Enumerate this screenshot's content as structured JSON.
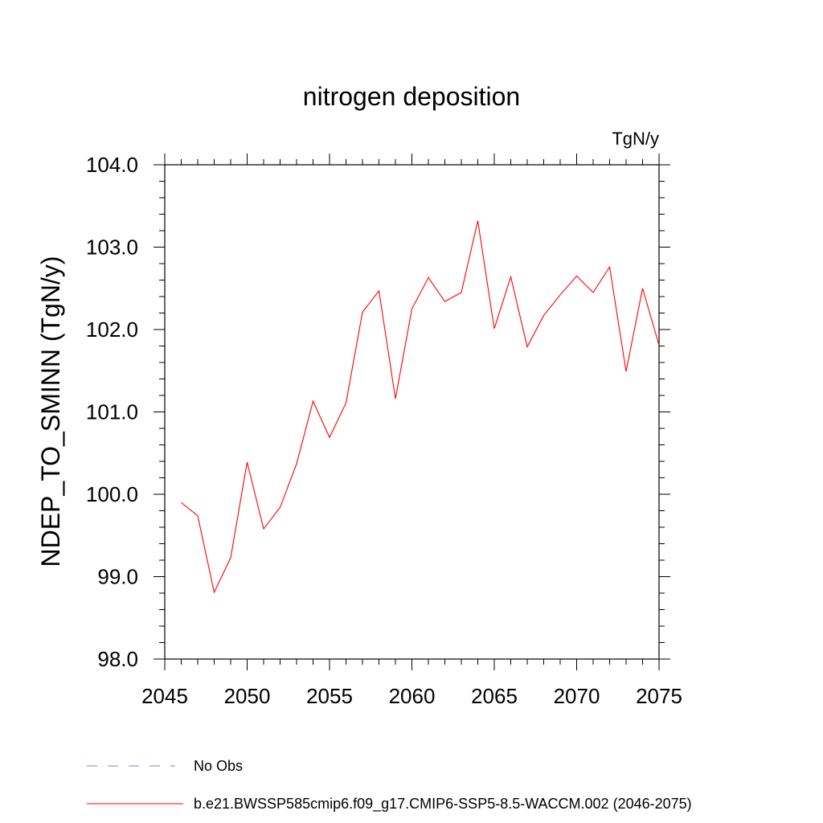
{
  "chart_data": {
    "type": "line",
    "title": "nitrogen deposition",
    "units_label": "TgN/y",
    "ylabel": "NDEP_TO_SMINN  (TgN/y)",
    "xlabel": "",
    "xlim": [
      2045,
      2075
    ],
    "ylim": [
      98.0,
      104.0
    ],
    "x_ticks": [
      2045,
      2050,
      2055,
      2060,
      2065,
      2070,
      2075
    ],
    "x_tick_labels": [
      "2045",
      "2050",
      "2055",
      "2060",
      "2065",
      "2070",
      "2075"
    ],
    "y_ticks": [
      98.0,
      99.0,
      100.0,
      101.0,
      102.0,
      103.0,
      104.0
    ],
    "y_tick_labels": [
      "98.0",
      "99.0",
      "100.0",
      "101.0",
      "102.0",
      "103.0",
      "104.0"
    ],
    "grid": false,
    "legend_position": "bottom",
    "series": [
      {
        "name": "b.e21.BWSSP585cmip6.f09_g17.CMIP6-SSP5-8.5-WACCM.002 (2046-2075)",
        "color": "#ff0000",
        "style": "solid",
        "x": [
          2046,
          2047,
          2048,
          2049,
          2050,
          2051,
          2052,
          2053,
          2054,
          2055,
          2056,
          2057,
          2058,
          2059,
          2060,
          2061,
          2062,
          2063,
          2064,
          2065,
          2066,
          2067,
          2068,
          2069,
          2070,
          2071,
          2072,
          2073,
          2074,
          2075
        ],
        "y": [
          99.9,
          99.74,
          98.81,
          99.23,
          100.39,
          99.58,
          99.84,
          100.37,
          101.13,
          100.69,
          101.11,
          102.21,
          102.47,
          101.16,
          102.25,
          102.63,
          102.34,
          102.45,
          103.32,
          102.01,
          102.64,
          101.79,
          102.17,
          102.42,
          102.65,
          102.45,
          102.76,
          101.49,
          102.5,
          101.81
        ]
      }
    ],
    "legend": [
      {
        "label": "No Obs",
        "color": "#8080c0",
        "style": "dashed"
      },
      {
        "label": "b.e21.BWSSP585cmip6.f09_g17.CMIP6-SSP5-8.5-WACCM.002 (2046-2075)",
        "color": "#ff0000",
        "style": "solid"
      }
    ]
  }
}
